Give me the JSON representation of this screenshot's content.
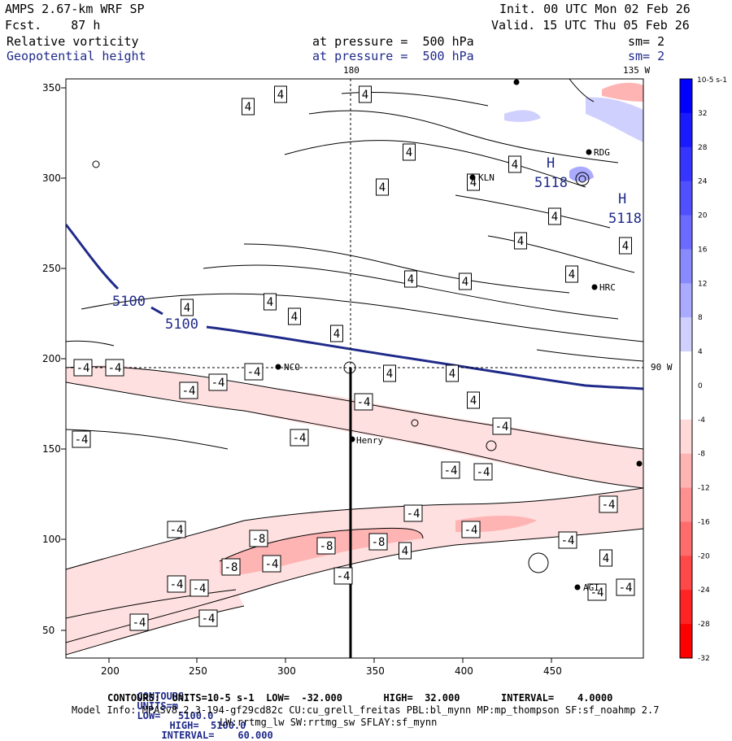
{
  "header": {
    "model": "AMPS 2.67-km WRF SP",
    "fcst": "Fcst.    87 h",
    "init": "Init. 00 UTC Mon 02 Feb 26",
    "valid": "Valid. 15 UTC Thu 05 Feb 26",
    "field1": "Relative vorticity",
    "field2": "Geopotential height",
    "pressure1": "at pressure =  500 hPa",
    "pressure2": "at pressure =  500 hPa",
    "sm1": "sm= 2",
    "sm2": "sm= 2"
  },
  "map": {
    "top_lon_label": "180",
    "top_right_lon_label": "135 W",
    "right_lon_label": "90 W",
    "x_ticks": [
      "200",
      "250",
      "300",
      "350",
      "400",
      "450"
    ],
    "y_ticks": [
      "50",
      "100",
      "150",
      "200",
      "250",
      "300",
      "350"
    ],
    "stations": [
      {
        "name": "NCO"
      },
      {
        "name": "Henry"
      },
      {
        "name": "KLN"
      },
      {
        "name": "RDG"
      },
      {
        "name": "HRC"
      },
      {
        "name": "AGI"
      }
    ],
    "height_labels": [
      "5100",
      "5100",
      "5118",
      "H",
      "H",
      "5118"
    ],
    "vort_labels_pos": [
      "4"
    ],
    "vort_labels_neg": [
      "-4",
      "-8"
    ]
  },
  "colorbar": {
    "unit": "10-5 s-1",
    "ticks": [
      "32",
      "28",
      "24",
      "20",
      "16",
      "12",
      "8",
      "4",
      "0",
      "-4",
      "-8",
      "-12",
      "-16",
      "-20",
      "-24",
      "-28",
      "-32"
    ],
    "colors": [
      "#0000ff",
      "#1a1aff",
      "#3535ff",
      "#5050ff",
      "#6b6bff",
      "#8a8aff",
      "#aaaaff",
      "#d0d0ff",
      "#ffffff",
      "#ffffff",
      "#ffd8d8",
      "#ffb4b4",
      "#ff9090",
      "#ff6c6c",
      "#ff4848",
      "#ff2424",
      "#ff0000"
    ]
  },
  "footer": {
    "line1_label": "CONTOURS:",
    "line1_units": "UNITS=m",
    "line1_low": "LOW=   5100.0",
    "line1_high": "HIGH=  5100.0",
    "line1_interval": "INTERVAL=    60.000",
    "line2": "CONTOURS:  UNITS=10-5 s-1  LOW=  -32.000       HIGH=  32.000       INTERVAL=    4.0000",
    "line3": "Model Info: MPASv8.2.3-194-gf29cd82c CU:cu_grell_freitas PBL:bl_mynn MP:mp_thompson SF:sf_noahmp 2.7",
    "line4": "LW:rrtmg_lw SW:rrtmg_sw SFLAY:sf_mynn"
  }
}
